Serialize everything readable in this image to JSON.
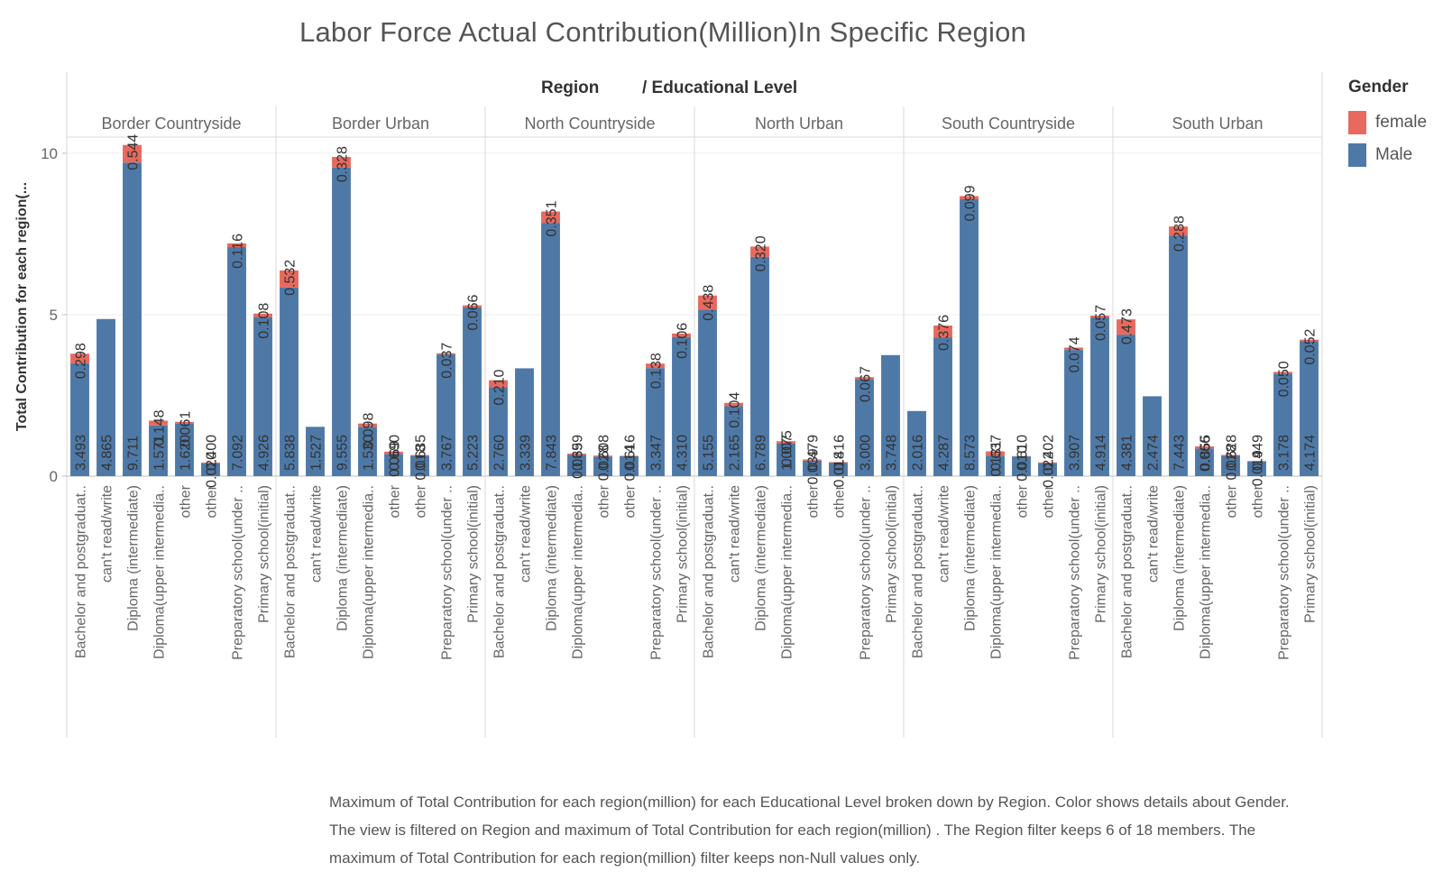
{
  "colors": {
    "female": "#e8695e",
    "male": "#4e79a7"
  },
  "legend": {
    "title": "Gender",
    "items": [
      {
        "label": "female",
        "color": "#e8695e"
      },
      {
        "label": "Male",
        "color": "#4e79a7"
      }
    ]
  },
  "header": {
    "region_label": "Region",
    "edu_label": "/ Educational Level"
  },
  "caption": "Maximum of Total Contribution for each region(million)    for each Educational Level  broken down by Region.  Color shows details about Gender. The view is filtered on Region  and maximum of Total Contribution for each region(million) . The Region filter keeps 6 of 18 members. The maximum of Total Contribution for each region(million) filter keeps non-Null values only.",
  "chart_data": {
    "type": "bar",
    "stacked": true,
    "title": "Labor Force Actual Contribution(Million)In Specific Region",
    "ylabel": "Total Contribution for each region(...",
    "ylim": [
      0,
      10.5
    ],
    "yticks": [
      0,
      5,
      10
    ],
    "grid": true,
    "legend_position": "right",
    "regions": [
      {
        "name": "Border Countryside",
        "categories": [
          "Bachelor and postgraduat..",
          "can't read/write",
          "Diploma (intermediate)",
          "Diploma(upper intermedia..",
          "other",
          "other",
          "Preparatory school(under ..",
          "Primary school(initial)"
        ],
        "male": [
          3.493,
          4.865,
          9.711,
          1.57,
          1.62,
          0.4,
          7.092,
          4.926
        ],
        "female": [
          0.298,
          0,
          0.544,
          0.148,
          0.061,
          0.02,
          0.116,
          0.108
        ],
        "male_labels": [
          "3.493",
          "4.865",
          "9.711",
          "1.571",
          "1.620",
          "0.400",
          "7.092",
          "4.926"
        ],
        "female_labels": [
          "0.298",
          "",
          "0.544",
          "0.148",
          "0.061",
          "0.020",
          "0.116",
          "0.108"
        ]
      },
      {
        "name": "Border Urban",
        "categories": [
          "Bachelor and postgraduat..",
          "can't read/write",
          "Diploma (intermediate)",
          "Diploma(upper intermedia..",
          "other",
          "other",
          "Preparatory school(under ..",
          "Primary school(initial)"
        ],
        "male": [
          5.838,
          1.527,
          9.555,
          1.53,
          0.69,
          0.635,
          3.767,
          5.223
        ],
        "female": [
          0.532,
          0,
          0.328,
          0.098,
          0.069,
          0.018,
          0.037,
          0.066
        ],
        "male_labels": [
          "5.838",
          "1.527",
          "9.555",
          "1.530",
          "0.690",
          "0.635",
          "3.767",
          "5.223"
        ],
        "female_labels": [
          "0.532",
          "",
          "0.328",
          "0.098",
          "0.069",
          "0.018",
          "0.037",
          "0.066"
        ]
      },
      {
        "name": "North Countryside",
        "categories": [
          "Bachelor and postgraduat..",
          "can't read/write",
          "Diploma (intermediate)",
          "Diploma(upper intermedia..",
          "other",
          "other",
          "Preparatory school(under ..",
          "Primary school(initial)"
        ],
        "male": [
          2.76,
          3.339,
          7.843,
          0.659,
          0.608,
          0.616,
          3.347,
          4.31
        ],
        "female": [
          0.21,
          0,
          0.351,
          0.039,
          0.028,
          0.014,
          0.138,
          0.106
        ],
        "male_labels": [
          "2.760",
          "3.339",
          "7.843",
          "0.659",
          "0.608",
          "0.616",
          "3.347",
          "4.310"
        ],
        "female_labels": [
          "0.210",
          "",
          "0.351",
          "0.039",
          "0.028",
          "0.014",
          "0.138",
          "0.106"
        ]
      },
      {
        "name": "North Urban",
        "categories": [
          "Bachelor and postgraduat..",
          "can't read/write",
          "Diploma (intermediate)",
          "Diploma(upper intermedia..",
          "other",
          "other",
          "Preparatory school(under ..",
          "Primary school(initial)"
        ],
        "male": [
          5.155,
          2.165,
          6.789,
          1.007,
          0.479,
          0.416,
          3.0,
          3.748
        ],
        "female": [
          0.438,
          0.104,
          0.32,
          0.075,
          0.039,
          0.018,
          0.067,
          0
        ],
        "male_labels": [
          "5.155",
          "2.165",
          "6.789",
          "1.007",
          "0.479",
          "0.416",
          "3.000",
          "3.748"
        ],
        "female_labels": [
          "0.438",
          "0.104",
          "0.320",
          "0.075",
          "0.039",
          "0.018",
          "0.067",
          ""
        ]
      },
      {
        "name": "South Countryside",
        "categories": [
          "Bachelor and postgraduat..",
          "can't read/write",
          "Diploma (intermediate)",
          "Diploma(upper intermedia..",
          "other",
          "other",
          "Preparatory school(under ..",
          "Primary school(initial)"
        ],
        "male": [
          2.016,
          4.287,
          8.573,
          0.637,
          0.61,
          0.402,
          3.907,
          4.914
        ],
        "female": [
          0,
          0.376,
          0.099,
          0.131,
          0.01,
          0.022,
          0.074,
          0.057
        ],
        "male_labels": [
          "2.016",
          "4.287",
          "8.573",
          "0.637",
          "0.610",
          "0.402",
          "3.907",
          "4.914"
        ],
        "female_labels": [
          "",
          "0.376",
          "0.099",
          "0.131",
          "0.010",
          "0.022",
          "0.074",
          "0.057"
        ]
      },
      {
        "name": "South Urban",
        "categories": [
          "Bachelor and postgraduat..",
          "can't read/write",
          "Diploma (intermediate)",
          "Diploma(upper intermedia..",
          "other",
          "other",
          "Preparatory school(under ..",
          "Primary school(initial)"
        ],
        "male": [
          4.381,
          2.474,
          7.443,
          0.855,
          0.628,
          0.449,
          3.178,
          4.174
        ],
        "female": [
          0.473,
          0,
          0.288,
          0.066,
          0.028,
          0.019,
          0.05,
          0.052
        ],
        "male_labels": [
          "4.381",
          "2.474",
          "7.443",
          "0.855",
          "0.628",
          "0.449",
          "3.178",
          "4.174"
        ],
        "female_labels": [
          "0.473",
          "",
          "0.288",
          "0.066",
          "0.028",
          "0.019",
          "0.050",
          "0.052"
        ]
      }
    ]
  }
}
